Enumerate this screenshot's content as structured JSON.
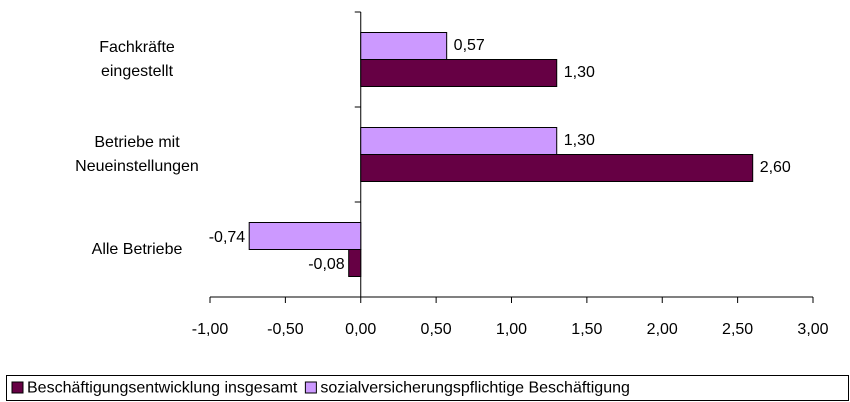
{
  "chart_data": {
    "type": "hbar",
    "categories": [
      "Fachkräfte\neingestellt",
      "Betriebe mit\nNeueinstellungen",
      "Alle Betriebe"
    ],
    "series": [
      {
        "name": "Beschäftigungsentwicklung insgesamt",
        "color": "#660044",
        "values": [
          1.3,
          2.6,
          -0.08
        ],
        "value_labels": [
          "1,30",
          "2,60",
          "-0,08"
        ]
      },
      {
        "name": "sozialversicherungspflichtige Beschäftigung",
        "color": "#cc99ff",
        "values": [
          0.57,
          1.3,
          -0.74
        ],
        "value_labels": [
          "0,57",
          "1,30",
          "-0,74"
        ]
      }
    ],
    "xlim": [
      -1,
      3
    ],
    "xticks": [
      {
        "value": -1,
        "label": "-1,00"
      },
      {
        "value": -0.5,
        "label": "-0,50"
      },
      {
        "value": 0,
        "label": "0,00"
      },
      {
        "value": 0.5,
        "label": "0,50"
      },
      {
        "value": 1,
        "label": "1,00"
      },
      {
        "value": 1.5,
        "label": "1,50"
      },
      {
        "value": 2,
        "label": "2,00"
      },
      {
        "value": 2.5,
        "label": "2,50"
      },
      {
        "value": 3,
        "label": "3,00"
      }
    ],
    "grid": false,
    "legend": "bottom"
  }
}
